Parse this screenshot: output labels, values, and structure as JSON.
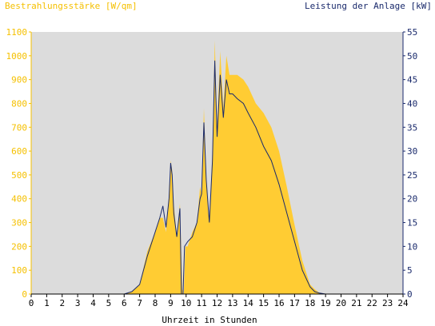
{
  "chart_data": {
    "type": "area",
    "left_axis_title": "Bestrahlungsstärke [W/qm]",
    "right_axis_title": "Leistung der Anlage [kW]",
    "xlabel": "Uhrzeit in Stunden",
    "x_ticks": [
      "0",
      "1",
      "2",
      "3",
      "4",
      "5",
      "6",
      "7",
      "8",
      "9",
      "10",
      "11",
      "12",
      "13",
      "14",
      "15",
      "16",
      "17",
      "18",
      "19",
      "20",
      "21",
      "22",
      "23",
      "24"
    ],
    "left_ticks": [
      "0",
      "100",
      "200",
      "300",
      "400",
      "500",
      "600",
      "700",
      "800",
      "900",
      "1000",
      "1100"
    ],
    "right_ticks": [
      "0",
      "5",
      "10",
      "15",
      "20",
      "25",
      "30",
      "35",
      "40",
      "45",
      "50",
      "55"
    ],
    "xlim": [
      0,
      24
    ],
    "ylim_left": [
      0,
      1100
    ],
    "ylim_right": [
      0,
      55
    ],
    "grid": false,
    "colors": {
      "irradiance": "#ffcc33",
      "power": "#1a2a6c",
      "plot_bg": "#dcdcdc",
      "left_axis": "#f5c000",
      "right_axis": "#1a2a6c"
    },
    "series": [
      {
        "name": "Bestrahlungsstärke [W/qm]",
        "axis": "left",
        "x": [
          0,
          6.0,
          6.5,
          7.0,
          7.5,
          8.0,
          8.3,
          8.5,
          8.7,
          8.9,
          9.0,
          9.1,
          9.2,
          9.4,
          9.6,
          9.75,
          9.85,
          9.95,
          10.1,
          10.4,
          10.7,
          10.9,
          11.0,
          11.15,
          11.3,
          11.5,
          11.7,
          11.85,
          12.0,
          12.2,
          12.4,
          12.6,
          12.8,
          13.0,
          13.3,
          13.7,
          14.0,
          14.5,
          15.0,
          15.5,
          16.0,
          16.5,
          17.0,
          17.5,
          18.0,
          18.3,
          18.6,
          19.0,
          24
        ],
        "y": [
          0,
          0,
          10,
          40,
          180,
          260,
          320,
          320,
          260,
          420,
          560,
          520,
          380,
          240,
          380,
          20,
          0,
          200,
          200,
          260,
          300,
          450,
          420,
          780,
          500,
          300,
          600,
          1065,
          700,
          1020,
          780,
          1000,
          920,
          920,
          920,
          900,
          870,
          800,
          760,
          700,
          600,
          450,
          290,
          140,
          40,
          20,
          5,
          0,
          0
        ]
      },
      {
        "name": "Leistung der Anlage [kW]",
        "axis": "right",
        "x": [
          0,
          6.0,
          6.5,
          7.0,
          7.5,
          8.0,
          8.3,
          8.5,
          8.7,
          8.9,
          9.0,
          9.1,
          9.2,
          9.4,
          9.6,
          9.7,
          9.8,
          9.9,
          10.1,
          10.4,
          10.7,
          10.9,
          11.0,
          11.15,
          11.3,
          11.5,
          11.7,
          11.85,
          12.0,
          12.2,
          12.4,
          12.6,
          12.8,
          13.0,
          13.3,
          13.7,
          14.0,
          14.5,
          15.0,
          15.5,
          16.0,
          16.5,
          17.0,
          17.5,
          18.0,
          18.3,
          18.6,
          19.0,
          24
        ],
        "y": [
          0,
          0,
          0.5,
          2,
          8,
          13,
          16,
          18.5,
          14,
          20,
          27.5,
          25,
          17,
          12,
          18,
          0,
          0,
          10,
          11,
          12,
          15,
          20,
          21,
          36,
          24,
          15,
          28,
          49,
          33,
          46,
          37,
          45,
          42,
          42,
          41,
          40,
          38,
          35,
          31,
          28,
          23,
          17,
          11,
          5,
          1.5,
          0.5,
          0.2,
          0,
          0
        ]
      }
    ]
  }
}
